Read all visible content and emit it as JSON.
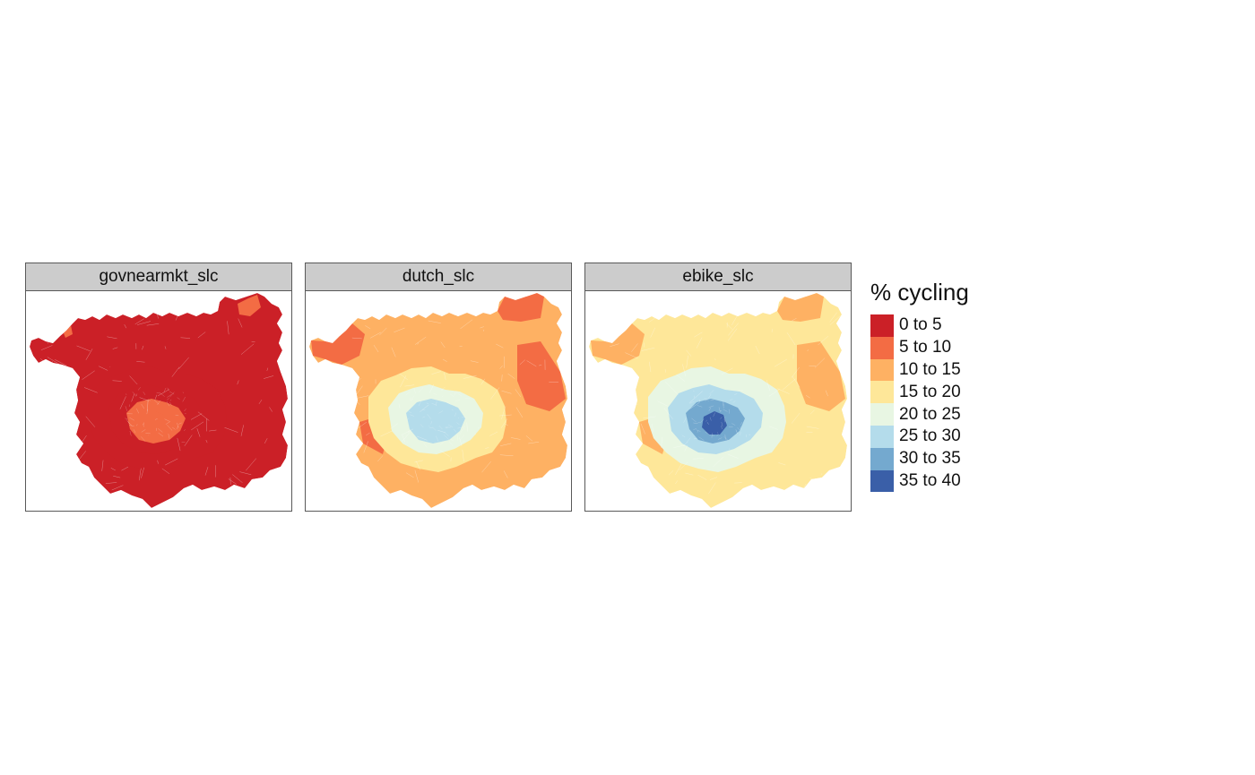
{
  "panels": [
    {
      "label": "govnearmkt_slc",
      "scenario": "govnearmkt",
      "outer": "#cb2027",
      "ring": "#cb2027",
      "inner": "#cb2027",
      "core": "#f36c44",
      "peak": "#f36c44",
      "accents": "#f36c44"
    },
    {
      "label": "dutch_slc",
      "scenario": "dutch",
      "outer": "#feb163",
      "ring": "#fee799",
      "inner": "#e8f6e3",
      "core": "#b4dceb",
      "peak": "#b4dceb",
      "accents": "#f36c44"
    },
    {
      "label": "ebike_slc",
      "scenario": "ebike",
      "outer": "#fee799",
      "ring": "#e8f6e3",
      "inner": "#b4dceb",
      "core": "#74a9cf",
      "peak": "#3a5fa8",
      "accents": "#feb163"
    }
  ],
  "legend": {
    "title": "% cycling",
    "items": [
      {
        "label": "0 to 5",
        "color": "#cb2027"
      },
      {
        "label": "5 to 10",
        "color": "#f36c44"
      },
      {
        "label": "10 to 15",
        "color": "#feb163"
      },
      {
        "label": "15 to 20",
        "color": "#fee799"
      },
      {
        "label": "20 to 25",
        "color": "#e8f6e3"
      },
      {
        "label": "25 to 30",
        "color": "#b4dceb"
      },
      {
        "label": "30 to 35",
        "color": "#74a9cf"
      },
      {
        "label": "35 to 40",
        "color": "#3a5fa8"
      }
    ]
  }
}
